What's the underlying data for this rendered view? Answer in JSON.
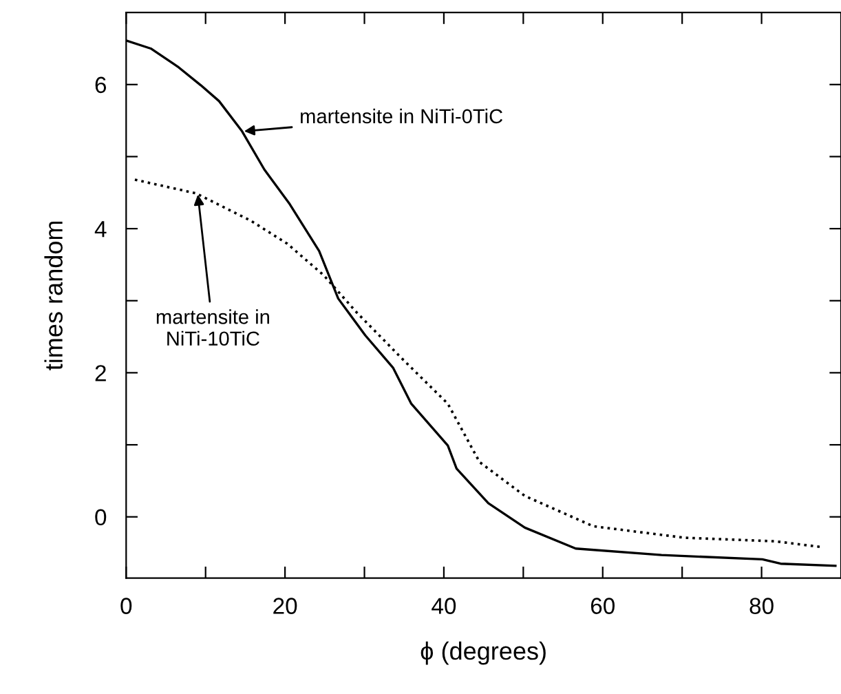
{
  "chart_data": {
    "type": "line",
    "xlabel": "ϕ (degrees)",
    "ylabel": "times random",
    "xlim": [
      0,
      90
    ],
    "ylim": [
      -0.85,
      7.0
    ],
    "xticks": [
      0,
      {
        "value": 10,
        "label": null
      },
      20,
      {
        "value": 30,
        "label": null
      },
      40,
      {
        "value": 50,
        "label": null
      },
      60,
      {
        "value": 70,
        "label": null
      },
      80
    ],
    "yticks": [
      0,
      {
        "value": 1,
        "label": null
      },
      2,
      {
        "value": 3,
        "label": null
      },
      4,
      {
        "value": 5,
        "label": null
      },
      6
    ],
    "grid": false,
    "legend": false,
    "marker": "none",
    "series": [
      {
        "color": "#000000",
        "line_style": "solid",
        "x": [
          0,
          3.1,
          6.6,
          9.4,
          11.7,
          14.6,
          17.4,
          20.6,
          24.3,
          26.7,
          30.1,
          33.6,
          35.9,
          40.5,
          41.6,
          45.6,
          50.2,
          56.6,
          67.4,
          80.1,
          82.4,
          89.3
        ],
        "values": [
          6.61,
          6.5,
          6.24,
          5.99,
          5.77,
          5.35,
          4.82,
          4.34,
          3.69,
          3.03,
          2.52,
          2.07,
          1.57,
          0.99,
          0.67,
          0.19,
          -0.15,
          -0.44,
          -0.53,
          -0.59,
          -0.65,
          -0.68
        ]
      },
      {
        "color": "#000000",
        "line_style": "dotted",
        "x": [
          1.1,
          8.8,
          15.7,
          20.3,
          24.9,
          29,
          34.7,
          40.5,
          44.5,
          50.2,
          58.8,
          70.3,
          81.8,
          87.6
        ],
        "values": [
          4.68,
          4.49,
          4.11,
          3.79,
          3.35,
          2.84,
          2.2,
          1.57,
          0.76,
          0.29,
          -0.13,
          -0.29,
          -0.34,
          -0.42
        ]
      }
    ],
    "annotations": [
      {
        "text": "martensite in NiTi-0TiC",
        "x": 14.6,
        "y": 5.35
      },
      {
        "text": "martensite in\nNiTi-10TiC",
        "x": 9,
        "y": 4.5
      }
    ]
  }
}
